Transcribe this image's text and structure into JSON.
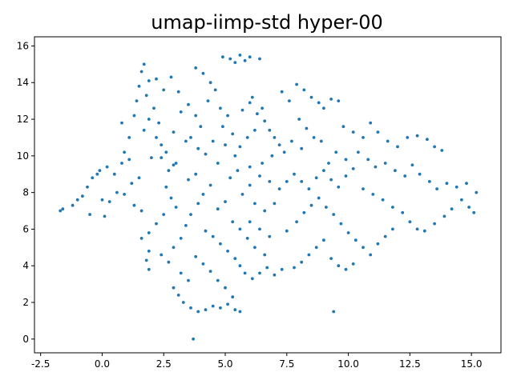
{
  "chart_data": {
    "type": "scatter",
    "title": "umap-iimp-std hyper-00",
    "xlabel": "",
    "ylabel": "",
    "xlim": [
      -2.75,
      16.2
    ],
    "ylim": [
      -0.75,
      16.5
    ],
    "xticks": [
      "-2.5",
      "0.0",
      "2.5",
      "5.0",
      "7.5",
      "10.0",
      "12.5",
      "15.0"
    ],
    "yticks": [
      "0",
      "2",
      "4",
      "6",
      "8",
      "10",
      "12",
      "14",
      "16"
    ],
    "grid": false,
    "legend": "none",
    "point_color": "#1f77b4",
    "series": [
      {
        "points": [
          [
            -1.7,
            7.0
          ],
          [
            -1.6,
            7.1
          ],
          [
            -1.2,
            7.3
          ],
          [
            -1.0,
            7.6
          ],
          [
            -0.8,
            7.8
          ],
          [
            -0.6,
            8.3
          ],
          [
            -0.4,
            8.8
          ],
          [
            -0.2,
            9.0
          ],
          [
            -0.1,
            9.2
          ],
          [
            0.2,
            9.4
          ],
          [
            0.5,
            9.0
          ],
          [
            0.8,
            9.6
          ],
          [
            0.9,
            10.2
          ],
          [
            1.1,
            9.8
          ],
          [
            0.0,
            7.6
          ],
          [
            0.3,
            7.5
          ],
          [
            0.1,
            6.7
          ],
          [
            -0.5,
            6.8
          ],
          [
            0.6,
            8.0
          ],
          [
            0.9,
            7.9
          ],
          [
            1.2,
            8.5
          ],
          [
            1.5,
            8.8
          ],
          [
            1.3,
            7.3
          ],
          [
            1.6,
            7.0
          ],
          [
            1.4,
            13.0
          ],
          [
            1.5,
            13.8
          ],
          [
            1.6,
            14.6
          ],
          [
            1.7,
            15.0
          ],
          [
            1.9,
            14.1
          ],
          [
            1.8,
            13.3
          ],
          [
            2.1,
            12.6
          ],
          [
            1.9,
            12.0
          ],
          [
            1.7,
            11.4
          ],
          [
            2.2,
            11.0
          ],
          [
            2.4,
            10.6
          ],
          [
            2.0,
            9.9
          ],
          [
            2.6,
            10.2
          ],
          [
            2.3,
            11.8
          ],
          [
            1.3,
            12.2
          ],
          [
            0.8,
            11.8
          ],
          [
            1.1,
            11.0
          ],
          [
            2.2,
            14.2
          ],
          [
            2.5,
            13.6
          ],
          [
            2.8,
            14.3
          ],
          [
            3.1,
            13.5
          ],
          [
            3.5,
            12.8
          ],
          [
            3.2,
            12.4
          ],
          [
            3.8,
            12.2
          ],
          [
            4.0,
            11.6
          ],
          [
            3.6,
            11.0
          ],
          [
            3.9,
            10.4
          ],
          [
            4.2,
            10.1
          ],
          [
            3.4,
            10.8
          ],
          [
            2.9,
            11.3
          ],
          [
            3.0,
            9.6
          ],
          [
            2.7,
            9.2
          ],
          [
            3.8,
            14.8
          ],
          [
            4.1,
            14.5
          ],
          [
            4.4,
            14.0
          ],
          [
            4.6,
            13.6
          ],
          [
            4.3,
            13.0
          ],
          [
            4.8,
            12.6
          ],
          [
            5.1,
            12.2
          ],
          [
            4.9,
            11.6
          ],
          [
            5.3,
            11.2
          ],
          [
            5.0,
            10.6
          ],
          [
            5.4,
            10.0
          ],
          [
            4.7,
            9.6
          ],
          [
            4.5,
            10.8
          ],
          [
            4.9,
            15.4
          ],
          [
            5.2,
            15.3
          ],
          [
            5.4,
            15.1
          ],
          [
            5.6,
            15.5
          ],
          [
            5.8,
            15.2
          ],
          [
            6.0,
            15.4
          ],
          [
            6.4,
            15.3
          ],
          [
            6.1,
            13.2
          ],
          [
            5.7,
            12.5
          ],
          [
            6.0,
            12.9
          ],
          [
            6.3,
            12.3
          ],
          [
            6.5,
            12.6
          ],
          [
            6.6,
            11.9
          ],
          [
            6.2,
            11.4
          ],
          [
            5.9,
            11.0
          ],
          [
            5.6,
            10.5
          ],
          [
            6.8,
            11.4
          ],
          [
            7.0,
            11.0
          ],
          [
            7.2,
            10.6
          ],
          [
            7.4,
            10.2
          ],
          [
            6.9,
            10.0
          ],
          [
            6.5,
            9.6
          ],
          [
            6.0,
            9.4
          ],
          [
            5.5,
            9.2
          ],
          [
            5.2,
            8.8
          ],
          [
            7.3,
            13.5
          ],
          [
            7.6,
            13.0
          ],
          [
            7.9,
            13.9
          ],
          [
            8.2,
            13.6
          ],
          [
            8.5,
            13.2
          ],
          [
            8.8,
            12.9
          ],
          [
            9.0,
            12.6
          ],
          [
            9.3,
            13.1
          ],
          [
            9.6,
            13.0
          ],
          [
            8.0,
            12.0
          ],
          [
            8.3,
            11.5
          ],
          [
            8.6,
            11.0
          ],
          [
            8.9,
            10.8
          ],
          [
            8.1,
            10.4
          ],
          [
            7.7,
            10.8
          ],
          [
            9.8,
            11.6
          ],
          [
            10.2,
            11.3
          ],
          [
            10.6,
            11.0
          ],
          [
            10.9,
            11.8
          ],
          [
            11.2,
            11.3
          ],
          [
            11.6,
            10.8
          ],
          [
            12.0,
            10.5
          ],
          [
            12.4,
            11.0
          ],
          [
            12.8,
            11.1
          ],
          [
            13.2,
            10.9
          ],
          [
            13.5,
            10.5
          ],
          [
            13.8,
            10.3
          ],
          [
            10.4,
            10.2
          ],
          [
            10.8,
            9.8
          ],
          [
            11.1,
            9.4
          ],
          [
            9.9,
            9.8
          ],
          [
            9.5,
            10.2
          ],
          [
            9.2,
            9.6
          ],
          [
            11.5,
            9.6
          ],
          [
            11.9,
            9.2
          ],
          [
            12.3,
            8.9
          ],
          [
            12.6,
            9.5
          ],
          [
            12.9,
            9.0
          ],
          [
            13.3,
            8.6
          ],
          [
            13.6,
            8.2
          ],
          [
            14.0,
            8.5
          ],
          [
            14.4,
            8.3
          ],
          [
            14.8,
            8.5
          ],
          [
            15.2,
            8.0
          ],
          [
            14.9,
            7.2
          ],
          [
            15.1,
            6.9
          ],
          [
            14.6,
            7.6
          ],
          [
            14.2,
            7.1
          ],
          [
            13.9,
            6.7
          ],
          [
            13.5,
            6.3
          ],
          [
            13.1,
            5.9
          ],
          [
            12.8,
            6.0
          ],
          [
            12.5,
            6.4
          ],
          [
            12.2,
            6.9
          ],
          [
            11.8,
            7.2
          ],
          [
            11.4,
            7.6
          ],
          [
            11.0,
            7.9
          ],
          [
            10.6,
            8.2
          ],
          [
            2.6,
            8.3
          ],
          [
            2.8,
            7.7
          ],
          [
            3.0,
            7.2
          ],
          [
            2.5,
            6.8
          ],
          [
            2.2,
            6.3
          ],
          [
            1.9,
            5.8
          ],
          [
            1.6,
            5.5
          ],
          [
            1.9,
            4.8
          ],
          [
            1.8,
            4.3
          ],
          [
            1.9,
            3.8
          ],
          [
            2.4,
            4.6
          ],
          [
            2.7,
            4.2
          ],
          [
            2.9,
            5.0
          ],
          [
            3.2,
            5.5
          ],
          [
            3.4,
            6.2
          ],
          [
            3.6,
            6.8
          ],
          [
            3.9,
            7.4
          ],
          [
            4.1,
            7.9
          ],
          [
            4.4,
            8.4
          ],
          [
            3.5,
            8.7
          ],
          [
            3.8,
            9.0
          ],
          [
            2.9,
            9.5
          ],
          [
            2.4,
            9.9
          ],
          [
            4.2,
            5.9
          ],
          [
            4.5,
            5.6
          ],
          [
            4.8,
            5.2
          ],
          [
            5.1,
            4.8
          ],
          [
            5.4,
            4.4
          ],
          [
            5.6,
            4.0
          ],
          [
            5.8,
            3.6
          ],
          [
            6.1,
            3.3
          ],
          [
            6.4,
            3.6
          ],
          [
            6.7,
            3.9
          ],
          [
            7.0,
            3.5
          ],
          [
            7.3,
            3.8
          ],
          [
            6.6,
            4.6
          ],
          [
            6.2,
            5.0
          ],
          [
            5.9,
            5.5
          ],
          [
            5.6,
            6.0
          ],
          [
            5.3,
            6.4
          ],
          [
            6.0,
            6.4
          ],
          [
            6.4,
            6.0
          ],
          [
            6.8,
            5.6
          ],
          [
            2.9,
            2.8
          ],
          [
            3.1,
            2.4
          ],
          [
            3.3,
            2.0
          ],
          [
            3.6,
            1.7
          ],
          [
            3.9,
            1.5
          ],
          [
            4.2,
            1.6
          ],
          [
            4.5,
            1.8
          ],
          [
            4.8,
            1.7
          ],
          [
            5.1,
            1.9
          ],
          [
            5.4,
            1.6
          ],
          [
            5.6,
            1.5
          ],
          [
            5.3,
            2.3
          ],
          [
            5.0,
            2.8
          ],
          [
            4.7,
            3.2
          ],
          [
            4.4,
            3.7
          ],
          [
            4.1,
            4.1
          ],
          [
            3.8,
            4.5
          ],
          [
            3.5,
            3.2
          ],
          [
            3.2,
            3.6
          ],
          [
            3.7,
            0.0
          ],
          [
            7.5,
            5.9
          ],
          [
            7.9,
            6.4
          ],
          [
            8.2,
            6.9
          ],
          [
            8.5,
            7.3
          ],
          [
            8.8,
            7.7
          ],
          [
            9.1,
            7.2
          ],
          [
            9.4,
            6.8
          ],
          [
            9.7,
            6.3
          ],
          [
            10.0,
            5.8
          ],
          [
            10.3,
            5.4
          ],
          [
            10.6,
            5.0
          ],
          [
            10.9,
            4.6
          ],
          [
            11.2,
            5.2
          ],
          [
            11.5,
            5.6
          ],
          [
            11.8,
            6.0
          ],
          [
            9.0,
            5.4
          ],
          [
            8.7,
            5.0
          ],
          [
            8.4,
            4.6
          ],
          [
            8.1,
            4.2
          ],
          [
            7.8,
            3.9
          ],
          [
            9.3,
            4.4
          ],
          [
            9.6,
            4.0
          ],
          [
            9.9,
            3.8
          ],
          [
            10.2,
            4.1
          ],
          [
            9.4,
            1.5
          ],
          [
            7.2,
            8.2
          ],
          [
            7.5,
            8.6
          ],
          [
            7.8,
            9.0
          ],
          [
            8.1,
            8.6
          ],
          [
            8.4,
            8.2
          ],
          [
            8.7,
            8.8
          ],
          [
            9.0,
            9.2
          ],
          [
            9.3,
            8.7
          ],
          [
            9.6,
            8.3
          ],
          [
            9.9,
            8.9
          ],
          [
            10.2,
            9.3
          ],
          [
            6.8,
            8.6
          ],
          [
            6.4,
            8.9
          ],
          [
            6.0,
            8.4
          ],
          [
            5.7,
            7.9
          ],
          [
            6.2,
            7.4
          ],
          [
            6.6,
            7.0
          ],
          [
            7.0,
            7.4
          ],
          [
            5.0,
            7.5
          ],
          [
            4.7,
            7.1
          ]
        ]
      }
    ]
  }
}
